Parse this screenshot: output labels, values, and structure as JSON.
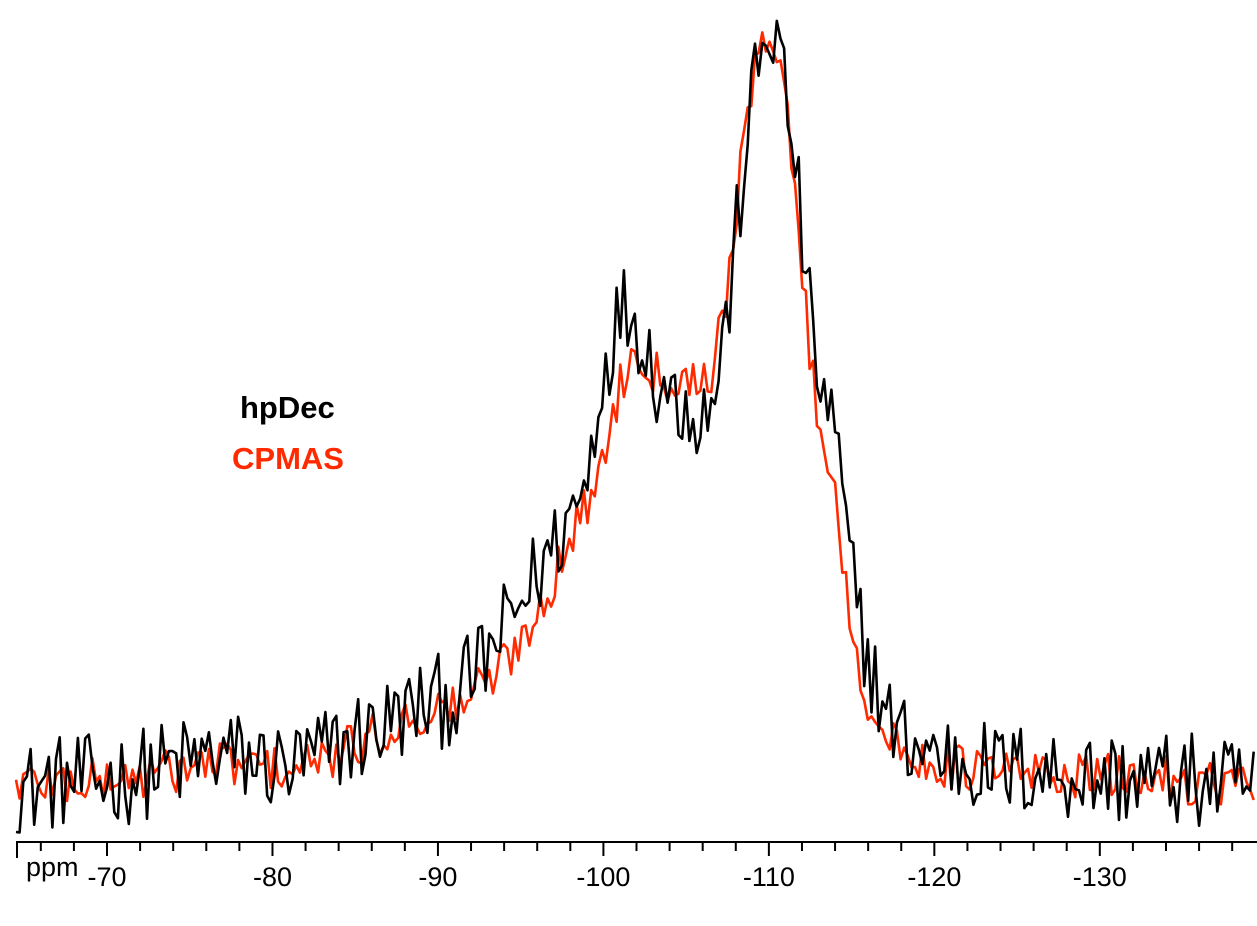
{
  "chart_data": {
    "type": "line",
    "xlabel": "ppm",
    "xlim": [
      -64.5,
      -139.5
    ],
    "x_reversed": true,
    "major_ticks": [
      -70,
      -80,
      -90,
      -100,
      -110,
      -120,
      -130
    ],
    "tick_labels": [
      "-70",
      "-80",
      "-90",
      "-100",
      "-110",
      "-120",
      "-130"
    ],
    "minor_tick_step": 2,
    "grid": false,
    "legend_placement": "left, mid-height",
    "series": [
      {
        "name": "hpDec",
        "color": "#000000",
        "x": [
          -65,
          -67,
          -69,
          -71,
          -73,
          -75,
          -77,
          -79,
          -81,
          -83,
          -85,
          -87,
          -89,
          -91,
          -93,
          -95,
          -97,
          -98,
          -99,
          -99.5,
          -100,
          -100.5,
          -101,
          -101.5,
          -102,
          -102.5,
          -103,
          -104,
          -105,
          -106,
          -106.5,
          -107,
          -107.5,
          -108,
          -108.5,
          -109,
          -109.5,
          -110,
          -110.5,
          -111,
          -111.5,
          -112,
          -112.5,
          -113,
          -114,
          -115,
          -116,
          -117,
          -118,
          -120,
          -122,
          -124,
          -126,
          -128,
          -130,
          -132,
          -134,
          -136,
          -138,
          -139.5
        ],
        "y": [
          0.035,
          0.045,
          0.045,
          0.05,
          0.06,
          0.07,
          0.08,
          0.07,
          0.06,
          0.08,
          0.1,
          0.12,
          0.14,
          0.15,
          0.2,
          0.27,
          0.34,
          0.38,
          0.42,
          0.5,
          0.56,
          0.6,
          0.63,
          0.64,
          0.62,
          0.6,
          0.56,
          0.53,
          0.52,
          0.5,
          0.52,
          0.56,
          0.63,
          0.72,
          0.82,
          0.9,
          0.95,
          0.99,
          0.97,
          0.91,
          0.83,
          0.73,
          0.62,
          0.55,
          0.48,
          0.3,
          0.2,
          0.13,
          0.1,
          0.08,
          0.07,
          0.06,
          0.06,
          0.055,
          0.05,
          0.05,
          0.05,
          0.045,
          0.04,
          0.04
        ],
        "noise_amplitude": 0.06
      },
      {
        "name": "CPMAS",
        "color": "#ff2a00",
        "x": [
          -65,
          -67,
          -69,
          -71,
          -73,
          -75,
          -77,
          -79,
          -81,
          -83,
          -85,
          -87,
          -89,
          -91,
          -93,
          -95,
          -97,
          -98,
          -99,
          -99.5,
          -100,
          -100.5,
          -101,
          -101.5,
          -102,
          -102.5,
          -103,
          -104,
          -105,
          -106,
          -106.5,
          -107,
          -107.5,
          -108,
          -108.5,
          -109,
          -109.5,
          -110,
          -110.5,
          -111,
          -111.5,
          -112,
          -112.5,
          -113,
          -114,
          -115,
          -116,
          -117,
          -118,
          -120,
          -122,
          -124,
          -126,
          -128,
          -130,
          -132,
          -134,
          -136,
          -138,
          -139.5
        ],
        "y": [
          0.045,
          0.045,
          0.045,
          0.05,
          0.055,
          0.065,
          0.07,
          0.065,
          0.06,
          0.07,
          0.09,
          0.11,
          0.13,
          0.14,
          0.17,
          0.22,
          0.3,
          0.35,
          0.39,
          0.42,
          0.45,
          0.5,
          0.54,
          0.57,
          0.58,
          0.58,
          0.56,
          0.55,
          0.55,
          0.55,
          0.56,
          0.6,
          0.67,
          0.76,
          0.84,
          0.91,
          0.96,
          0.99,
          0.97,
          0.9,
          0.8,
          0.68,
          0.58,
          0.5,
          0.4,
          0.24,
          0.14,
          0.1,
          0.08,
          0.07,
          0.06,
          0.06,
          0.055,
          0.055,
          0.05,
          0.05,
          0.05,
          0.045,
          0.045,
          0.045
        ],
        "noise_amplitude": 0.03
      }
    ]
  }
}
